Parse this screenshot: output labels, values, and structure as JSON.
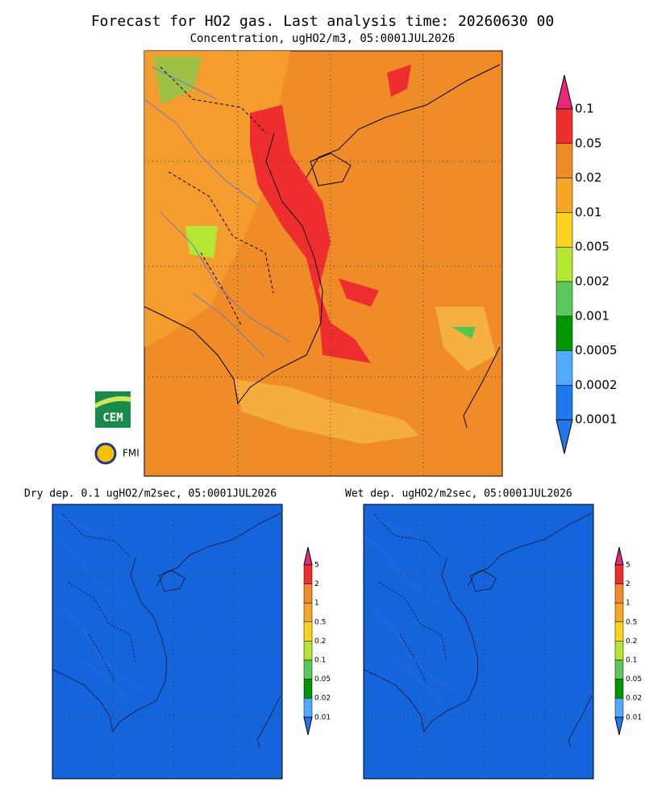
{
  "header": {
    "title": "Forecast for HO2 gas. Last analysis time: 20260630 00",
    "subtitle": "Concentration, ugHO2/m3, 05:0001JUL2026"
  },
  "main_panel": {
    "colorbar_labels": [
      "0.1",
      "0.05",
      "0.02",
      "0.01",
      "0.005",
      "0.002",
      "0.001",
      "0.0005",
      "0.0002",
      "0.0001"
    ]
  },
  "logos": {
    "cem": "CEM",
    "fmi": "FMI"
  },
  "dry_panel": {
    "title": "Dry dep. 0.1 ugHO2/m2sec, 05:0001JUL2026",
    "colorbar_labels": [
      "5",
      "2",
      "1",
      "0.5",
      "0.2",
      "0.1",
      "0.05",
      "0.02",
      "0.01"
    ]
  },
  "wet_panel": {
    "title": "Wet dep. ugHO2/m2sec, 05:0001JUL2026",
    "colorbar_labels": [
      "5",
      "2",
      "1",
      "0.5",
      "0.2",
      "0.1",
      "0.05",
      "0.02",
      "0.01"
    ]
  }
}
